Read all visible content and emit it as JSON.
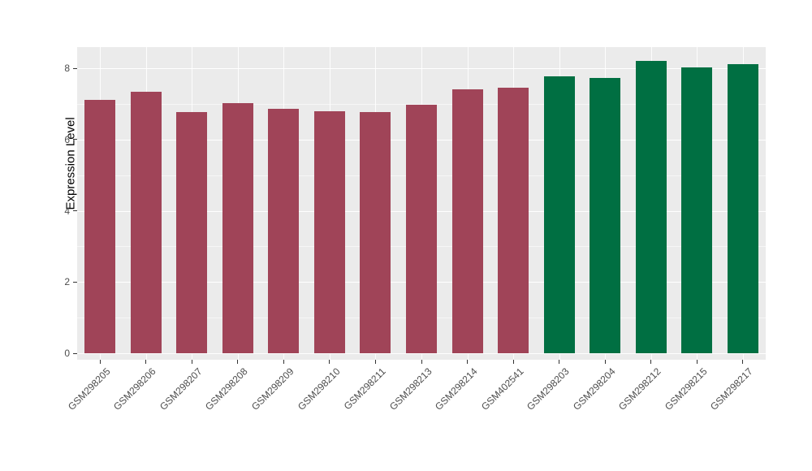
{
  "figure": {
    "background": "#FFFFFF",
    "panel_background": "#EBEBEB",
    "gridline_color": "#FFFFFF",
    "tick_text_color": "#4D4D4D"
  },
  "chart_data": {
    "type": "bar",
    "title": "",
    "xlabel": "",
    "ylabel": "Expression Level",
    "categories": [
      "GSM298205",
      "GSM298206",
      "GSM298207",
      "GSM298208",
      "GSM298209",
      "GSM298210",
      "GSM298211",
      "GSM298213",
      "GSM298214",
      "GSM402541",
      "GSM298203",
      "GSM298204",
      "GSM298212",
      "GSM298215",
      "GSM298217"
    ],
    "values": [
      7.1,
      7.35,
      6.78,
      7.03,
      6.85,
      6.8,
      6.78,
      6.97,
      7.4,
      7.45,
      7.78,
      7.73,
      8.2,
      8.02,
      8.12
    ],
    "groups": [
      "red",
      "red",
      "red",
      "red",
      "red",
      "red",
      "red",
      "red",
      "red",
      "red",
      "green",
      "green",
      "green",
      "green",
      "green"
    ],
    "colors": {
      "red": "#A04458",
      "green": "#006F42"
    },
    "yticks": [
      0,
      2,
      4,
      6,
      8
    ],
    "minor_yticks": [
      1,
      3,
      5,
      7
    ],
    "ylim": [
      0,
      8.6
    ],
    "grid": true,
    "legend": "none",
    "x_label_rotation_deg": 45
  }
}
